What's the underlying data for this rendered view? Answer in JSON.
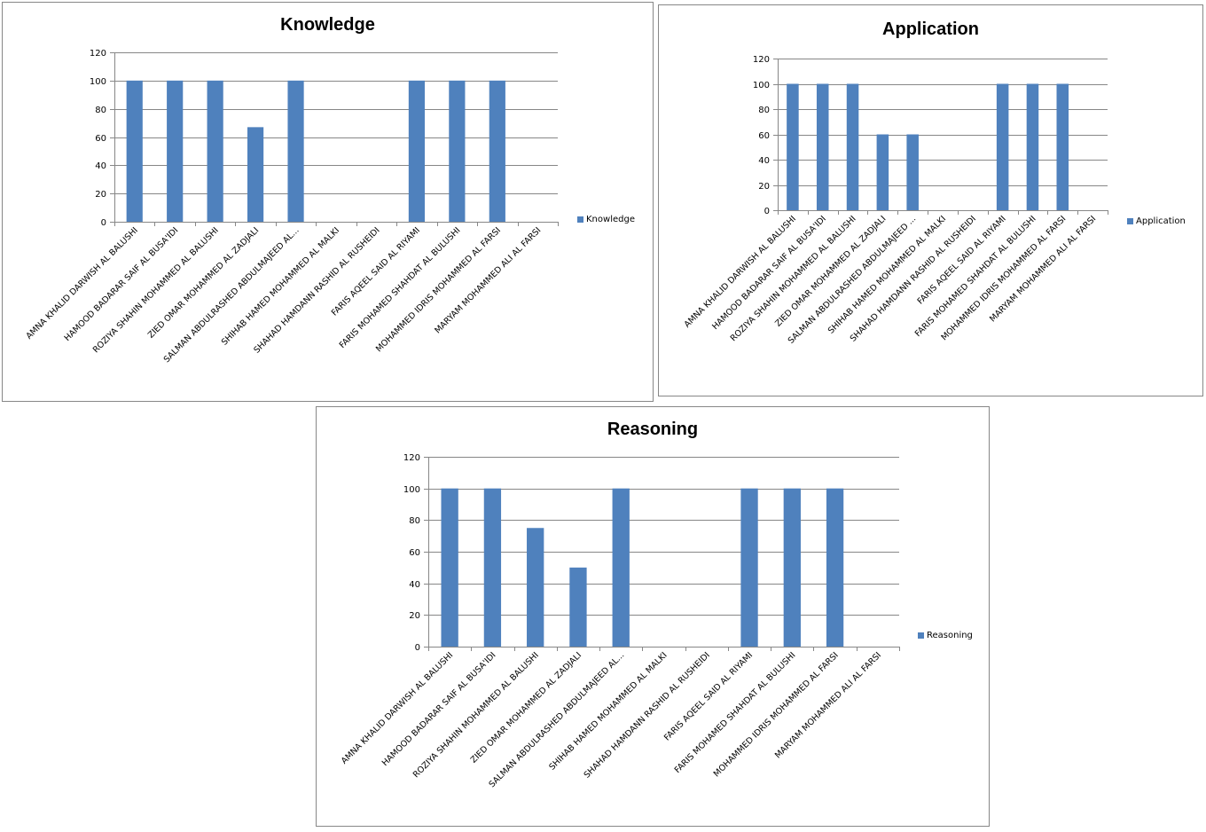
{
  "colors": {
    "bar": "#4f81bd",
    "grid": "#878787",
    "axis": "#878787",
    "border": "#878787"
  },
  "chart_data": [
    {
      "type": "bar",
      "title": "Knowledge",
      "xlabel": "",
      "ylabel": "",
      "ylim": [
        0,
        120
      ],
      "yticks": [
        "0",
        "20",
        "40",
        "60",
        "80",
        "100",
        "120"
      ],
      "grid": true,
      "legend": "right",
      "categories": [
        "AMNA KHALID DARWISH AL BALUSHI",
        "HAMOOD BADARAR SAIF AL BUSA'IDI",
        "ROZIYA SHAHIN MOHAMMED AL BALUSHI",
        "ZIED OMAR MOHAMMED AL ZADJALI",
        "SALMAN ABDULRASHED ABDULMAJEED AL...",
        "SHIHAB HAMED MOHAMMED AL MALKI",
        "SHAHAD HAMDANN RASHID AL RUSHEIDI",
        "FARIS AQEEL SAID AL RIYAMI",
        "FARIS MOHAMED SHAHDAT AL BULUSHI",
        "MOHAMMED IDRIS MOHAMMED AL FARSI",
        "MARYAM MOHAMMED ALI AL FARSI"
      ],
      "series": [
        {
          "name": "Knowledge",
          "values": [
            100,
            100,
            100,
            67,
            100,
            0,
            0,
            100,
            100,
            100,
            0
          ]
        }
      ]
    },
    {
      "type": "bar",
      "title": "Application",
      "xlabel": "",
      "ylabel": "",
      "ylim": [
        0,
        120
      ],
      "yticks": [
        "0",
        "20",
        "40",
        "60",
        "80",
        "100",
        "120"
      ],
      "grid": true,
      "legend": "right",
      "categories": [
        "AMNA KHALID DARWISH AL BALUSHI",
        "HAMOOD BADARAR SAIF AL BUSA'IDI",
        "ROZIYA SHAHIN MOHAMMED AL BALUSHI",
        "ZIED OMAR MOHAMMED AL ZADJALI",
        "SALMAN ABDULRASHED ABDULMAJEED ...",
        "SHIHAB HAMED MOHAMMED AL MALKI",
        "SHAHAD HAMDANN RASHID AL RUSHEIDI",
        "FARIS AQEEL SAID AL RIYAMI",
        "FARIS MOHAMED SHAHDAT AL BULUSHI",
        "MOHAMMED IDRIS MOHAMMED AL FARSI",
        "MARYAM MOHAMMED ALI AL FARSI"
      ],
      "series": [
        {
          "name": "Application",
          "values": [
            100,
            100,
            100,
            60,
            60,
            0,
            0,
            100,
            100,
            100,
            0
          ]
        }
      ]
    },
    {
      "type": "bar",
      "title": "Reasoning",
      "xlabel": "",
      "ylabel": "",
      "ylim": [
        0,
        120
      ],
      "yticks": [
        "0",
        "20",
        "40",
        "60",
        "80",
        "100",
        "120"
      ],
      "grid": true,
      "legend": "right",
      "categories": [
        "AMNA KHALID DARWISH AL BALUSHI",
        "HAMOOD BADARAR SAIF AL BUSA'IDI",
        "ROZIYA SHAHIN MOHAMMED AL BALUSHI",
        "ZIED OMAR MOHAMMED AL ZADJALI",
        "SALMAN ABDULRASHED ABDULMAJEED AL...",
        "SHIHAB HAMED MOHAMMED AL MALKI",
        "SHAHAD HAMDANN RASHID AL RUSHEIDI",
        "FARIS AQEEL SAID AL RIYAMI",
        "FARIS MOHAMED SHAHDAT AL BULUSHI",
        "MOHAMMED IDRIS MOHAMMED AL FARSI",
        "MARYAM MOHAMMED ALI AL FARSI"
      ],
      "series": [
        {
          "name": "Reasoning",
          "values": [
            100,
            100,
            75,
            50,
            100,
            0,
            0,
            100,
            100,
            100,
            0
          ]
        }
      ]
    }
  ]
}
